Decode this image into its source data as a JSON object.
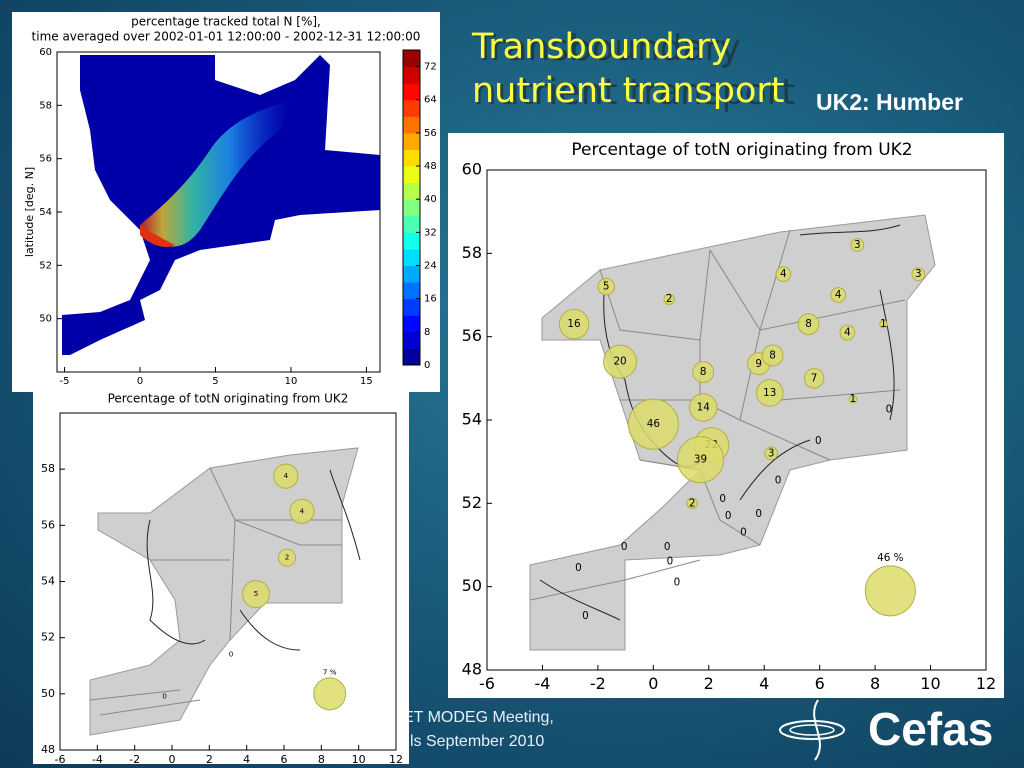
{
  "slide": {
    "title": "Transboundary nutrient transport",
    "subtitle": "UK2: Humber",
    "footer": [
      "ET MODEG Meeting,",
      "ls September 2010"
    ],
    "logo": "Cefas"
  },
  "chart_data": [
    {
      "type": "heatmap",
      "title": [
        "percentage tracked total N [%],",
        "time averaged over 2002-01-01 12:00:00 - 2002-12-31 12:00:00"
      ],
      "ylabel": "latitude [deg. N]",
      "xlim": [
        -5.5,
        15.9
      ],
      "ylim": [
        48,
        60
      ],
      "xticks": [
        -5,
        0,
        5,
        10,
        15
      ],
      "yticks": [
        50,
        52,
        54,
        56,
        58,
        60
      ],
      "colorbar": {
        "lim": [
          0,
          76
        ],
        "ticks": [
          0,
          8,
          16,
          24,
          32,
          40,
          48,
          56,
          64,
          72
        ]
      }
    },
    {
      "type": "bubble",
      "title": "Percentage of totN originating from UK2",
      "color": "#dcdc6c",
      "xlim": [
        -6,
        12
      ],
      "ylim": [
        48,
        60
      ],
      "xticks": [
        -6,
        -4,
        -2,
        0,
        2,
        4,
        6,
        8,
        10,
        12
      ],
      "yticks": [
        48,
        50,
        52,
        54,
        56,
        58,
        60
      ],
      "x": [
        7.36,
        4.69,
        9.56,
        -1.7,
        0.57,
        6.67,
        -2.86,
        5.6,
        7.0,
        8.3,
        -1.2,
        3.8,
        4.3,
        1.8,
        5.8,
        7.2,
        4.2,
        1.8,
        0.0,
        2.1,
        1.7,
        4.25,
        1.4,
        8.5,
        5.95,
        4.5,
        2.5,
        2.7,
        3.8,
        3.25,
        -1.05,
        0.5,
        -2.7,
        0.6,
        0.85,
        -2.45
      ],
      "y": [
        58.2,
        57.5,
        57.5,
        57.2,
        56.9,
        57.0,
        56.3,
        56.3,
        56.1,
        56.3,
        55.4,
        55.35,
        55.55,
        55.15,
        55.0,
        54.5,
        54.65,
        54.3,
        53.9,
        53.4,
        53.05,
        53.2,
        52.0,
        54.25,
        53.5,
        52.55,
        52.1,
        51.7,
        51.75,
        51.3,
        50.95,
        50.95,
        50.45,
        50.6,
        50.1,
        49.3
      ],
      "values": [
        3,
        4,
        3,
        5,
        2,
        4,
        16,
        8,
        4,
        1,
        20,
        9,
        8,
        8,
        7,
        1,
        13,
        14,
        46,
        22,
        39,
        3,
        2,
        0,
        0,
        0,
        0,
        0,
        0,
        0,
        0,
        0,
        0,
        0,
        0,
        0
      ],
      "key": {
        "x": 8.55,
        "y": 49.9,
        "value": 46,
        "label": "46 %"
      }
    },
    {
      "type": "bubble",
      "title": "Percentage of totN originating from UK2",
      "color": "#dcdc6c",
      "xlim": [
        -6,
        12
      ],
      "ylim": [
        48,
        60
      ],
      "xticks": [
        -6,
        -4,
        -2,
        0,
        2,
        4,
        6,
        8,
        10,
        12
      ],
      "yticks": [
        48,
        50,
        52,
        54,
        56,
        58
      ],
      "x": [
        6.1,
        6.96,
        6.16,
        4.5,
        3.16,
        -0.4
      ],
      "y": [
        57.75,
        56.5,
        54.85,
        53.55,
        51.4,
        49.9
      ],
      "values": [
        4,
        4,
        2,
        5,
        0,
        0
      ],
      "key": {
        "x": 8.45,
        "y": 50.0,
        "value": 7,
        "label": "7 %"
      }
    }
  ]
}
